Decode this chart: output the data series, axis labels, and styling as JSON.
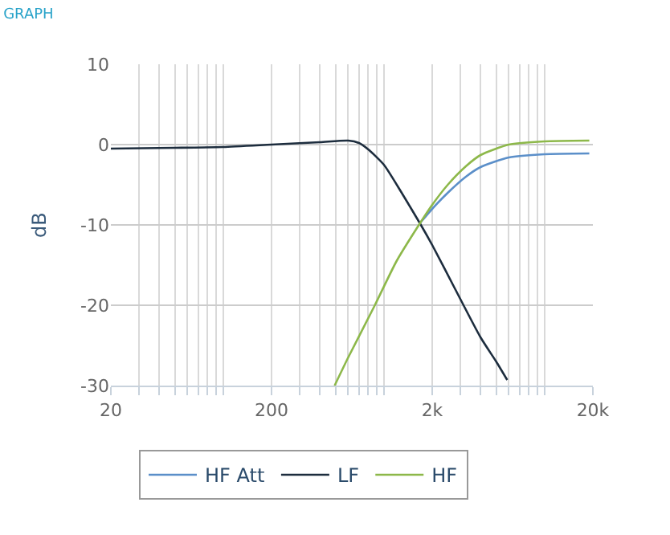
{
  "chart_data": {
    "type": "line",
    "title": "GRAPH",
    "ylabel": "dB",
    "log": "x",
    "xlim": [
      20,
      20000
    ],
    "ylim": [
      -30,
      10
    ],
    "yticks": [
      -30,
      -20,
      -10,
      0,
      10
    ],
    "xticks": [
      20,
      {
        "value": 30,
        "label": null
      },
      {
        "value": 40,
        "label": null
      },
      {
        "value": 50,
        "label": null
      },
      {
        "value": 60,
        "label": null
      },
      {
        "value": 70,
        "label": null
      },
      {
        "value": 80,
        "label": null
      },
      {
        "value": 90,
        "label": null
      },
      {
        "value": 100,
        "label": null
      },
      200,
      {
        "value": 300,
        "label": null
      },
      {
        "value": 400,
        "label": null
      },
      {
        "value": 500,
        "label": null
      },
      {
        "value": 600,
        "label": null
      },
      {
        "value": 700,
        "label": null
      },
      {
        "value": 800,
        "label": null
      },
      {
        "value": 900,
        "label": null
      },
      {
        "value": 1000,
        "label": null
      },
      {
        "value": 2000,
        "label": "2k"
      },
      {
        "value": 3000,
        "label": null
      },
      {
        "value": 4000,
        "label": null
      },
      {
        "value": 5000,
        "label": null
      },
      {
        "value": 6000,
        "label": null
      },
      {
        "value": 7000,
        "label": null
      },
      {
        "value": 8000,
        "label": null
      },
      {
        "value": 9000,
        "label": null
      },
      {
        "value": 10000,
        "label": null
      },
      {
        "value": 20000,
        "label": "20k"
      }
    ],
    "grid": true,
    "legend": "bottom",
    "marker": "none",
    "line_style": "solid",
    "series": [
      {
        "name": "HF Att",
        "color": "#5b8fc9",
        "x": [
          1690,
          2000,
          2500,
          3240,
          4000,
          6000,
          10000,
          19000
        ],
        "values": [
          -9.7,
          -8,
          -6,
          -4,
          -2.8,
          -1.6,
          -1.2,
          -1.1
        ]
      },
      {
        "name": "LF",
        "color": "#1d2d3e",
        "x": [
          20,
          50,
          100,
          200,
          400,
          600,
          700,
          800,
          1000,
          1291,
          1700,
          2000,
          2781,
          4000,
          5000,
          5860
        ],
        "values": [
          -0.5,
          -0.4,
          -0.3,
          0,
          0.3,
          0.5,
          0.2,
          -0.6,
          -2.5,
          -6,
          -10,
          -12.5,
          -18,
          -24,
          -27,
          -29.3
        ]
      },
      {
        "name": "HF",
        "color": "#8db84a",
        "x": [
          494,
          600,
          879,
          1200,
          1690,
          2000,
          2500,
          3240,
          4000,
          6000,
          10000,
          19000
        ],
        "values": [
          -30,
          -26.5,
          -20,
          -14.5,
          -9.7,
          -7.5,
          -5,
          -2.7,
          -1.3,
          0,
          0.4,
          0.5
        ]
      }
    ]
  }
}
